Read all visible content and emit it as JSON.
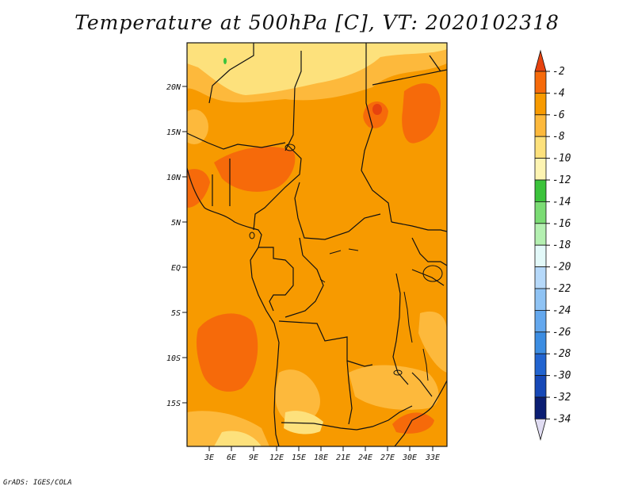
{
  "title": "Temperature at 500hPa [C], VT: 2020102318",
  "credit": "GrADS: IGES/COLA",
  "map": {
    "lat_labels": [
      "20N",
      "15N",
      "10N",
      "5N",
      "EQ",
      "5S",
      "10S",
      "15S"
    ],
    "lon_labels": [
      "3E",
      "6E",
      "9E",
      "12E",
      "15E",
      "18E",
      "21E",
      "24E",
      "27E",
      "30E",
      "33E"
    ]
  },
  "colorbar": {
    "labels": [
      "-2",
      "-4",
      "-6",
      "-8",
      "-10",
      "-12",
      "-14",
      "-16",
      "-18",
      "-20",
      "-22",
      "-24",
      "-26",
      "-28",
      "-30",
      "-32",
      "-34"
    ],
    "colors": [
      "#e6420f",
      "#f66a0a",
      "#f79a00",
      "#fdb93c",
      "#fde17c",
      "#fdf4b2",
      "#3bc33b",
      "#7bdc74",
      "#b4f0b1",
      "#e3f9f9",
      "#b6d9fa",
      "#8fc3f4",
      "#64a8ee",
      "#3c8de2",
      "#2264d0",
      "#1648b7",
      "#0b1e73",
      "#e0dcf2"
    ]
  },
  "colors": {
    "base_field": "#f79a00",
    "warm_field": "#f66a0a",
    "cool_field": "#fdb93c",
    "cooler_field": "#fde17c"
  }
}
